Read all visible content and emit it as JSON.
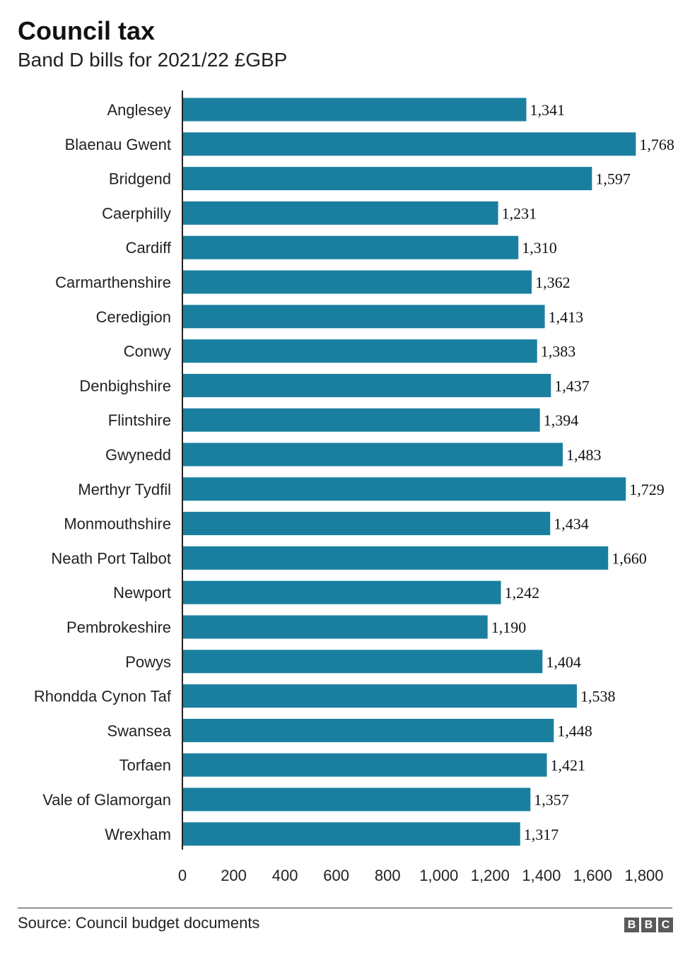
{
  "header": {
    "title": "Council tax",
    "subtitle": "Band D bills for 2021/22 £GBP"
  },
  "footer": {
    "source": "Source: Council budget documents",
    "logo_letters": [
      "B",
      "B",
      "C"
    ]
  },
  "chart_data": {
    "type": "bar",
    "orientation": "horizontal",
    "title": "Council tax",
    "subtitle": "Band D bills for 2021/22 £GBP",
    "bar_color": "#1a7f9f",
    "categories": [
      "Anglesey",
      "Blaenau Gwent",
      "Bridgend",
      "Caerphilly",
      "Cardiff",
      "Carmarthenshire",
      "Ceredigion",
      "Conwy",
      "Denbighshire",
      "Flintshire",
      "Gwynedd",
      "Merthyr Tydfil",
      "Monmouthshire",
      "Neath Port Talbot",
      "Newport",
      "Pembrokeshire",
      "Powys",
      "Rhondda Cynon Taf",
      "Swansea",
      "Torfaen",
      "Vale of Glamorgan",
      "Wrexham"
    ],
    "values": [
      1341,
      1768,
      1597,
      1231,
      1310,
      1362,
      1413,
      1383,
      1437,
      1394,
      1483,
      1729,
      1434,
      1660,
      1242,
      1190,
      1404,
      1538,
      1448,
      1421,
      1357,
      1317
    ],
    "value_labels": [
      "1,341",
      "1,768",
      "1,597",
      "1,231",
      "1,310",
      "1,362",
      "1,413",
      "1,383",
      "1,437",
      "1,394",
      "1,483",
      "1,729",
      "1,434",
      "1,660",
      "1,242",
      "1,190",
      "1,404",
      "1,538",
      "1,448",
      "1,421",
      "1,357",
      "1,317"
    ],
    "xlim": [
      0,
      1800
    ],
    "xticks": [
      0,
      200,
      400,
      600,
      800,
      1000,
      1200,
      1400,
      1600,
      1800
    ],
    "xtick_labels": [
      "0",
      "200",
      "400",
      "600",
      "800",
      "1,000",
      "1,200",
      "1,400",
      "1,600",
      "1,800"
    ],
    "grid": false
  }
}
